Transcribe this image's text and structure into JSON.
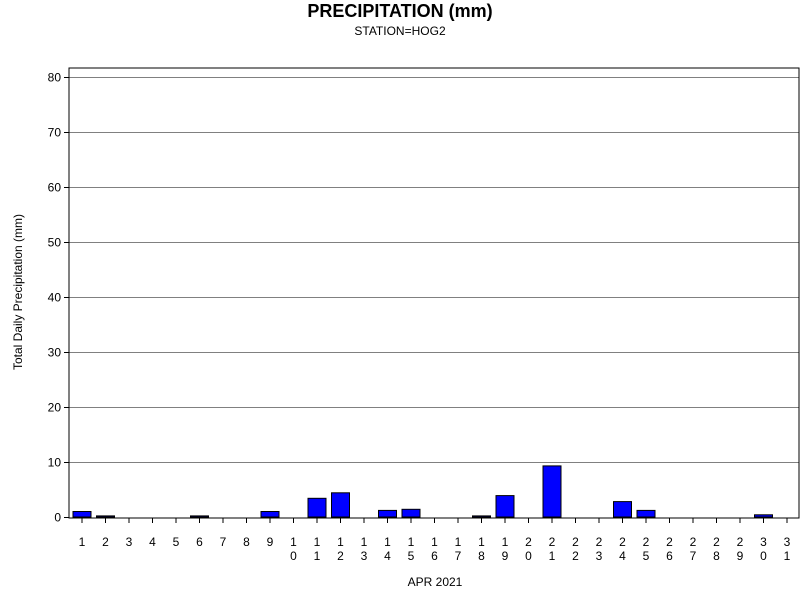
{
  "chart_data": {
    "type": "bar",
    "title": "PRECIPITATION (mm)",
    "subtitle": "STATION=HOG2",
    "xlabel": "APR 2021",
    "ylabel": "Total Daily Precipitation (mm)",
    "ylim": [
      0,
      80
    ],
    "yticks": [
      0,
      10,
      20,
      30,
      40,
      50,
      60,
      70,
      80
    ],
    "grid": true,
    "bar_color": "#0000ff",
    "categories": [
      "1",
      "2",
      "3",
      "4",
      "5",
      "6",
      "7",
      "8",
      "9",
      "10",
      "11",
      "12",
      "13",
      "14",
      "15",
      "16",
      "17",
      "18",
      "19",
      "20",
      "21",
      "22",
      "23",
      "24",
      "25",
      "26",
      "27",
      "28",
      "29",
      "30",
      "31"
    ],
    "values": [
      1.0,
      0.2,
      0,
      0,
      0,
      0.2,
      0,
      0,
      1.0,
      0,
      3.4,
      4.4,
      0,
      1.2,
      1.4,
      0,
      0,
      0.2,
      3.9,
      0,
      9.3,
      0,
      0,
      2.8,
      1.2,
      0,
      0,
      0,
      0,
      0.4,
      0
    ]
  }
}
